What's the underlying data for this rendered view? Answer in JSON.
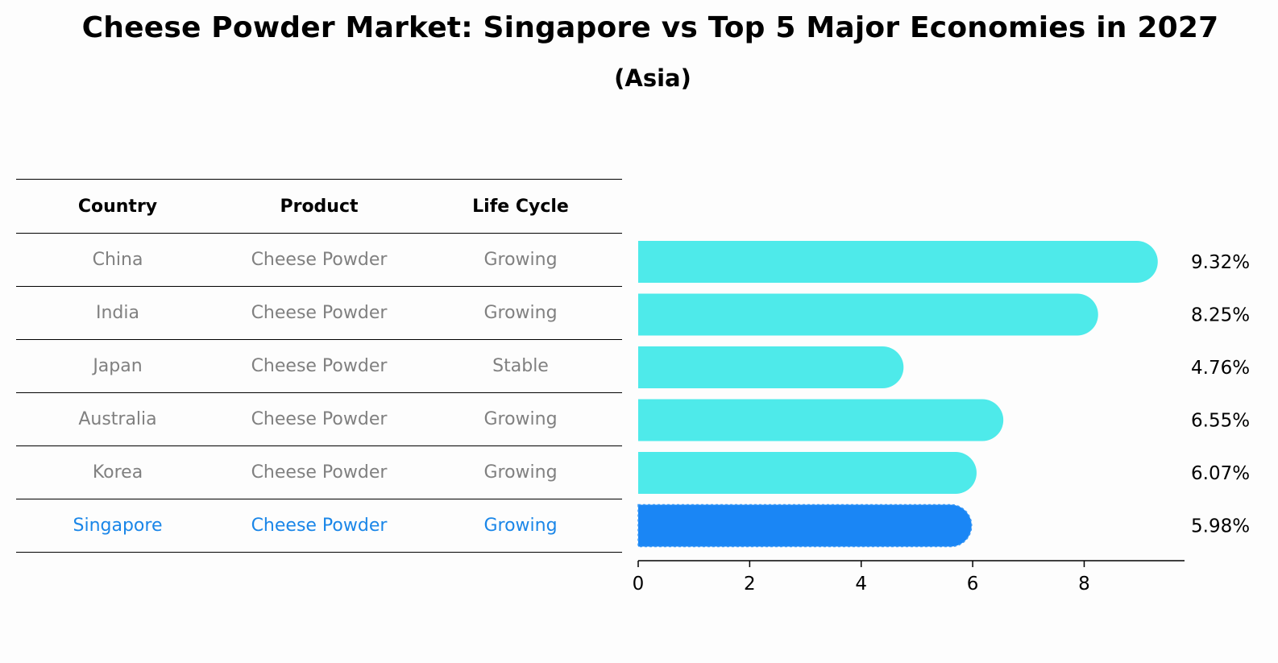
{
  "title": "Cheese Powder Market: Singapore vs Top 5 Major Economies in 2027",
  "subtitle": "(Asia)",
  "table": {
    "headers": [
      "Country",
      "Product",
      "Life Cycle"
    ],
    "rows": [
      [
        "China",
        "Cheese Powder",
        "Growing"
      ],
      [
        "India",
        "Cheese Powder",
        "Growing"
      ],
      [
        "Japan",
        "Cheese Powder",
        "Stable"
      ],
      [
        "Australia",
        "Cheese Powder",
        "Growing"
      ],
      [
        "Korea",
        "Cheese Powder",
        "Growing"
      ],
      [
        "Singapore",
        "Cheese Powder",
        "Growing"
      ]
    ]
  },
  "colors": {
    "bar": "#4eeaea",
    "highlight_bar": "#1a86f5",
    "highlight_text": "#1a86e8",
    "muted_text": "#808080"
  },
  "chart_data": {
    "type": "bar",
    "orientation": "horizontal",
    "categories": [
      "China",
      "India",
      "Japan",
      "Australia",
      "Korea",
      "Singapore"
    ],
    "values": [
      9.32,
      8.25,
      4.76,
      6.55,
      6.07,
      5.98
    ],
    "value_labels": [
      "9.32%",
      "8.25%",
      "4.76%",
      "6.55%",
      "6.07%",
      "5.98%"
    ],
    "highlight": "Singapore",
    "xlim": [
      0,
      9.8
    ],
    "xticks": [
      0,
      2,
      4,
      6,
      8
    ],
    "xtick_labels": [
      "0",
      "2",
      "4",
      "6",
      "8"
    ]
  }
}
